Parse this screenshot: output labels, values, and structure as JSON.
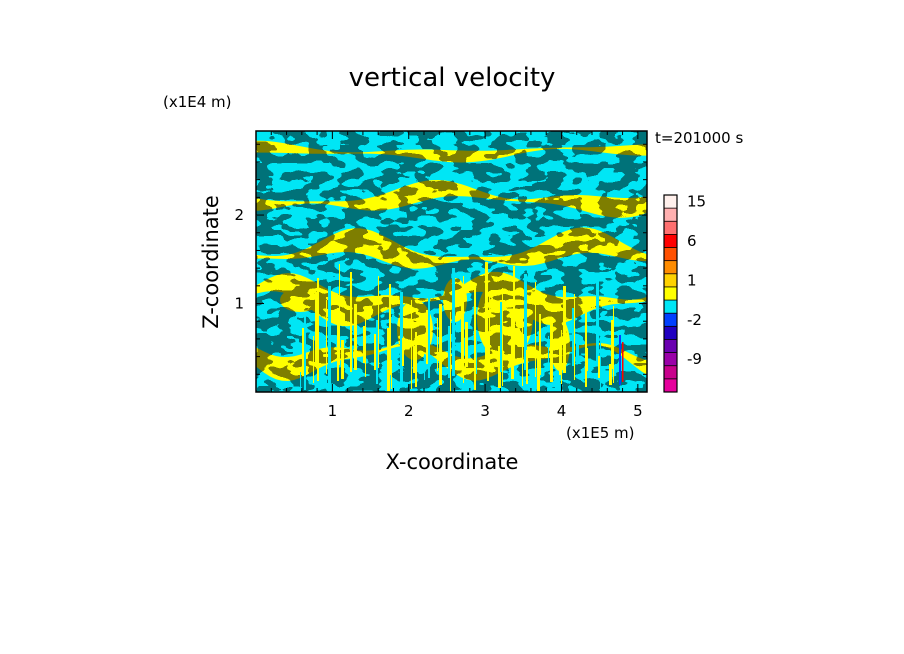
{
  "chart_data": {
    "type": "heatmap",
    "title": "vertical velocity",
    "xlabel": "X-coordinate",
    "ylabel": "Z-coordinate",
    "x_unit": "(x1E5 m)",
    "y_unit": "(x1E4 m)",
    "time_label": "t=201000 s",
    "x_ticks": [
      "1",
      "2",
      "3",
      "4",
      "5"
    ],
    "y_ticks": [
      "1",
      "2"
    ],
    "xlim": [
      0,
      5.12
    ],
    "ylim": [
      0,
      2.95
    ],
    "colorbar": {
      "tick_labels": [
        "15",
        "6",
        "1",
        "-2",
        "-9"
      ],
      "levels": [
        -15,
        -12,
        -9,
        -6,
        -4,
        -2,
        -1,
        0,
        1,
        2,
        4,
        6,
        9,
        12,
        15
      ],
      "colors": [
        "#e6009c",
        "#c8008c",
        "#9a00a8",
        "#6a00b0",
        "#2000c0",
        "#0040ff",
        "#00e6f5",
        "#ffff00",
        "#ffd200",
        "#ff8c00",
        "#ff5000",
        "#ff0000",
        "#ff7070",
        "#ffb0b0",
        "#fff0ec"
      ]
    },
    "field_colors": {
      "negative": "#00e6f5",
      "positive": "#ffff00",
      "frame": "#000000"
    }
  }
}
